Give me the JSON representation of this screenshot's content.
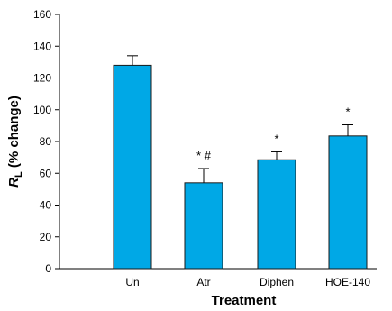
{
  "chart_data": {
    "type": "bar",
    "categories": [
      "Un",
      "Atr",
      "Diphen",
      "HOE-140"
    ],
    "values": [
      128,
      54,
      68.5,
      83.5
    ],
    "error": [
      6,
      9,
      5,
      7
    ],
    "annotations": [
      "",
      "* #",
      "*",
      "*"
    ],
    "xlabel": "Treatment",
    "ylabel_main": "R",
    "ylabel_sub": "L",
    "ylabel_rest": " (% change)",
    "ylim": [
      0,
      160
    ],
    "yticks": [
      0,
      20,
      40,
      60,
      80,
      100,
      120,
      140,
      160
    ],
    "grid": false,
    "bar_color": "#00a8e6",
    "bar_edge_color": "#1a1a1a"
  }
}
